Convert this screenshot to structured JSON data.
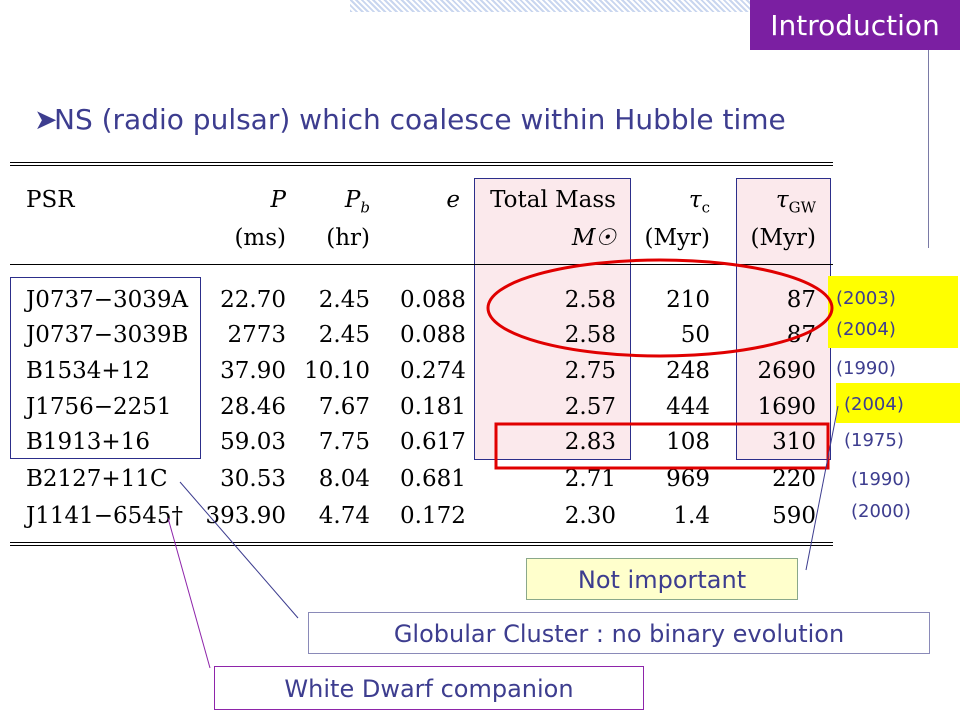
{
  "header": {
    "section_label": "Introduction",
    "bullet_icon": "arrow-bullet-icon",
    "bullet_text": "NS (radio pulsar) which coalesce within Hubble time"
  },
  "table": {
    "headers": [
      {
        "name": "PSR",
        "unit": ""
      },
      {
        "name": "P",
        "unit": "(ms)"
      },
      {
        "name": "P_b",
        "unit": "(hr)"
      },
      {
        "name": "e",
        "unit": ""
      },
      {
        "name": "Total Mass",
        "unit": "M☉"
      },
      {
        "name": "τ_c",
        "unit": "(Myr)"
      },
      {
        "name": "τ_GW",
        "unit": "(Myr)"
      }
    ],
    "rows": [
      {
        "psr": "J0737−3039A",
        "p": "22.70",
        "pb": "2.45",
        "e": "0.088",
        "mass": "2.58",
        "tc": "210",
        "tgw": "87"
      },
      {
        "psr": "J0737−3039B",
        "p": "2773",
        "pb": "2.45",
        "e": "0.088",
        "mass": "2.58",
        "tc": "50",
        "tgw": "87"
      },
      {
        "psr": "B1534+12",
        "p": "37.90",
        "pb": "10.10",
        "e": "0.274",
        "mass": "2.75",
        "tc": "248",
        "tgw": "2690"
      },
      {
        "psr": "J1756−2251",
        "p": "28.46",
        "pb": "7.67",
        "e": "0.181",
        "mass": "2.57",
        "tc": "444",
        "tgw": "1690"
      },
      {
        "psr": "B1913+16",
        "p": "59.03",
        "pb": "7.75",
        "e": "0.617",
        "mass": "2.83",
        "tc": "108",
        "tgw": "310"
      },
      {
        "psr": "B2127+11C",
        "p": "30.53",
        "pb": "8.04",
        "e": "0.681",
        "mass": "2.71",
        "tc": "969",
        "tgw": "220"
      },
      {
        "psr": "J1141−6545†",
        "p": "393.90",
        "pb": "4.74",
        "e": "0.172",
        "mass": "2.30",
        "tc": "1.4",
        "tgw": "590"
      }
    ]
  },
  "years": [
    "(2003)",
    "(2004)",
    "(1990)",
    "(2004)",
    "(1975)",
    "(1990)",
    "(2000)"
  ],
  "notes": {
    "not_important": "Not important",
    "globular": "Globular Cluster : no binary evolution",
    "white_dwarf": "White Dwarf companion"
  },
  "colors": {
    "accent_purple": "#7b1fa2",
    "text_blue": "#3d3d8f",
    "highlight_yellow": "#ffff00",
    "note_fill": "#ffffcc",
    "red_marker": "#e00000"
  }
}
